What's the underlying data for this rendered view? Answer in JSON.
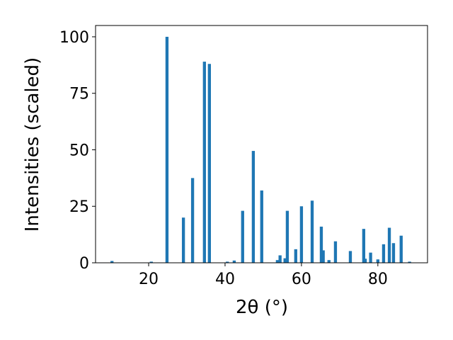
{
  "chart_data": {
    "type": "bar",
    "x": [
      10.4,
      20.7,
      24.8,
      29.1,
      31.5,
      34.6,
      35.9,
      40.6,
      42.4,
      44.6,
      47.4,
      49.6,
      53.7,
      54.4,
      55.7,
      56.3,
      58.5,
      60.0,
      62.8,
      65.2,
      65.7,
      67.2,
      68.9,
      72.8,
      76.3,
      76.7,
      78.1,
      80.0,
      81.5,
      83.0,
      84.1,
      86.1,
      88.3
    ],
    "values": [
      0.8,
      0.5,
      100,
      20,
      37.5,
      89,
      88,
      0.5,
      1,
      23,
      49.5,
      32,
      1.2,
      3.3,
      2,
      23,
      6,
      25,
      27.5,
      16,
      5.5,
      1.2,
      9.5,
      5.2,
      15,
      1.8,
      4.5,
      1.5,
      8.2,
      15.5,
      8.7,
      12,
      0.5
    ],
    "color": "#1f77b4",
    "xlabel": "2θ (°)",
    "ylabel": "Intensities (scaled)",
    "xlim": [
      6.1,
      93
    ],
    "ylim": [
      0,
      105
    ],
    "xticks": [
      20,
      40,
      60,
      80
    ],
    "yticks": [
      0,
      25,
      50,
      75,
      100
    ]
  }
}
